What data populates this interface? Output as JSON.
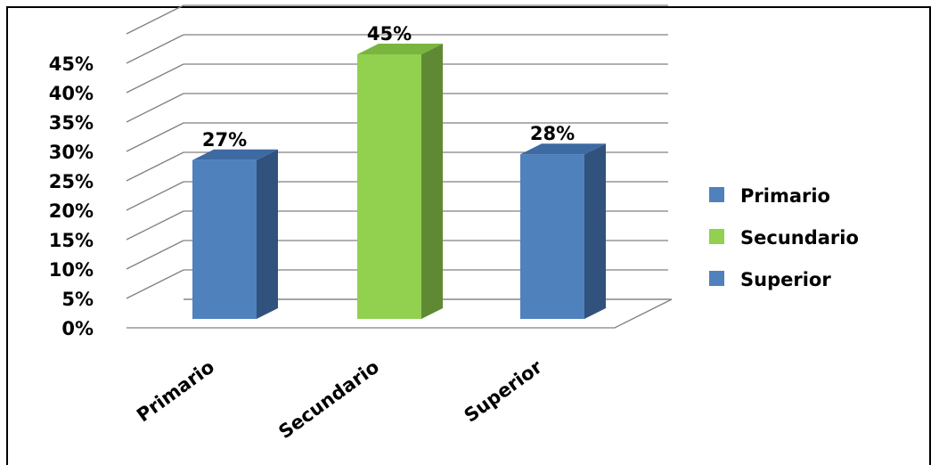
{
  "chart_data": {
    "type": "bar",
    "categories": [
      "Primario",
      "Secundario",
      "Superior"
    ],
    "values": [
      27,
      45,
      28
    ],
    "value_labels": [
      "27%",
      "45%",
      "28%"
    ],
    "colors": [
      "#4f81bd",
      "#92d050",
      "#4f81bd"
    ],
    "side_colors": [
      "#31527c",
      "#5f8a33",
      "#31527c"
    ],
    "top_colors": [
      "#3e6aa3",
      "#7ab53f",
      "#3e6aa3"
    ],
    "y_ticks": [
      "0%",
      "5%",
      "10%",
      "15%",
      "20%",
      "25%",
      "30%",
      "35%",
      "40%",
      "45%"
    ],
    "ylim": [
      0,
      50
    ],
    "grid": true,
    "legend": {
      "placement": "right",
      "entries": [
        "Primario",
        "Secundario",
        "Superior"
      ]
    }
  }
}
